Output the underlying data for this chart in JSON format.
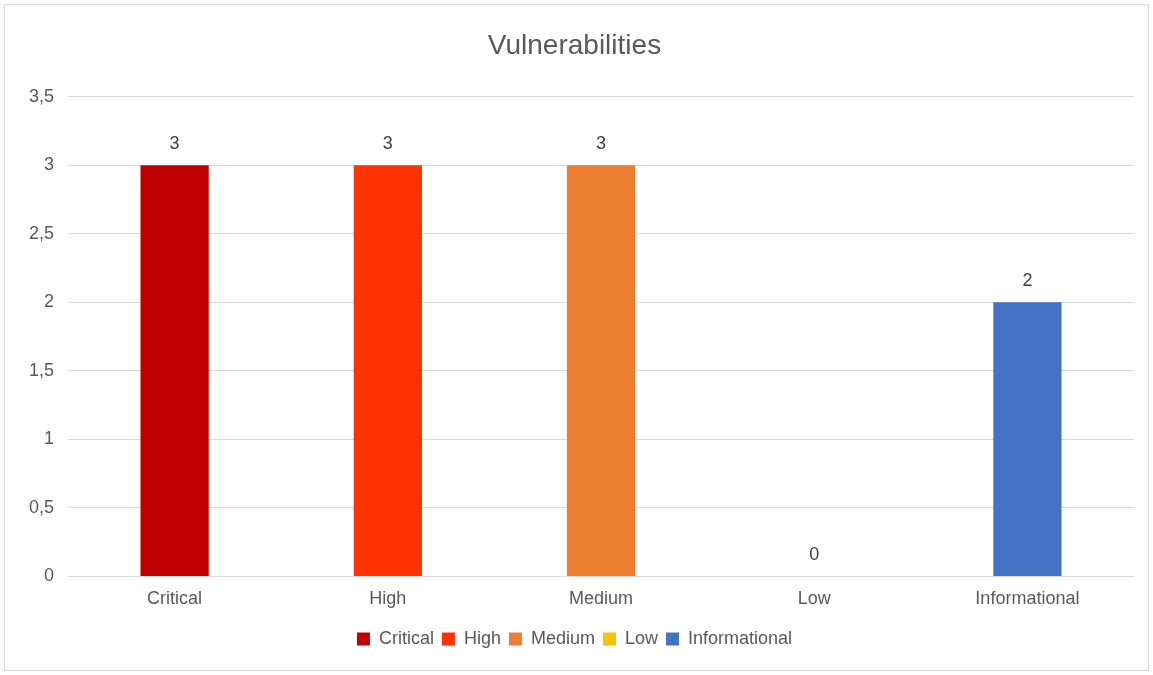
{
  "chart_data": {
    "type": "bar",
    "title": "Vulnerabilities",
    "categories": [
      "Critical",
      "High",
      "Medium",
      "Low",
      "Informational"
    ],
    "series": [
      {
        "name": "Critical",
        "color": "#c00000",
        "values": [
          3,
          null,
          null,
          null,
          null
        ]
      },
      {
        "name": "High",
        "color": "#ff3300",
        "values": [
          null,
          3,
          null,
          null,
          null
        ]
      },
      {
        "name": "Medium",
        "color": "#ed7d31",
        "values": [
          null,
          null,
          3,
          null,
          null
        ]
      },
      {
        "name": "Low",
        "color": "#ffc000",
        "values": [
          null,
          null,
          null,
          0,
          null
        ]
      },
      {
        "name": "Informational",
        "color": "#4472c4",
        "values": [
          null,
          null,
          null,
          null,
          2
        ]
      }
    ],
    "ylim": [
      0,
      3.5
    ],
    "yticks": [
      {
        "value": 0,
        "label": "0"
      },
      {
        "value": 0.5,
        "label": "0,5"
      },
      {
        "value": 1,
        "label": "1"
      },
      {
        "value": 1.5,
        "label": "1,5"
      },
      {
        "value": 2,
        "label": "2"
      },
      {
        "value": 2.5,
        "label": "2,5"
      },
      {
        "value": 3,
        "label": "3"
      },
      {
        "value": 3.5,
        "label": "3,5"
      }
    ],
    "grid": "y",
    "legend": "bottom",
    "data_labels": true
  }
}
